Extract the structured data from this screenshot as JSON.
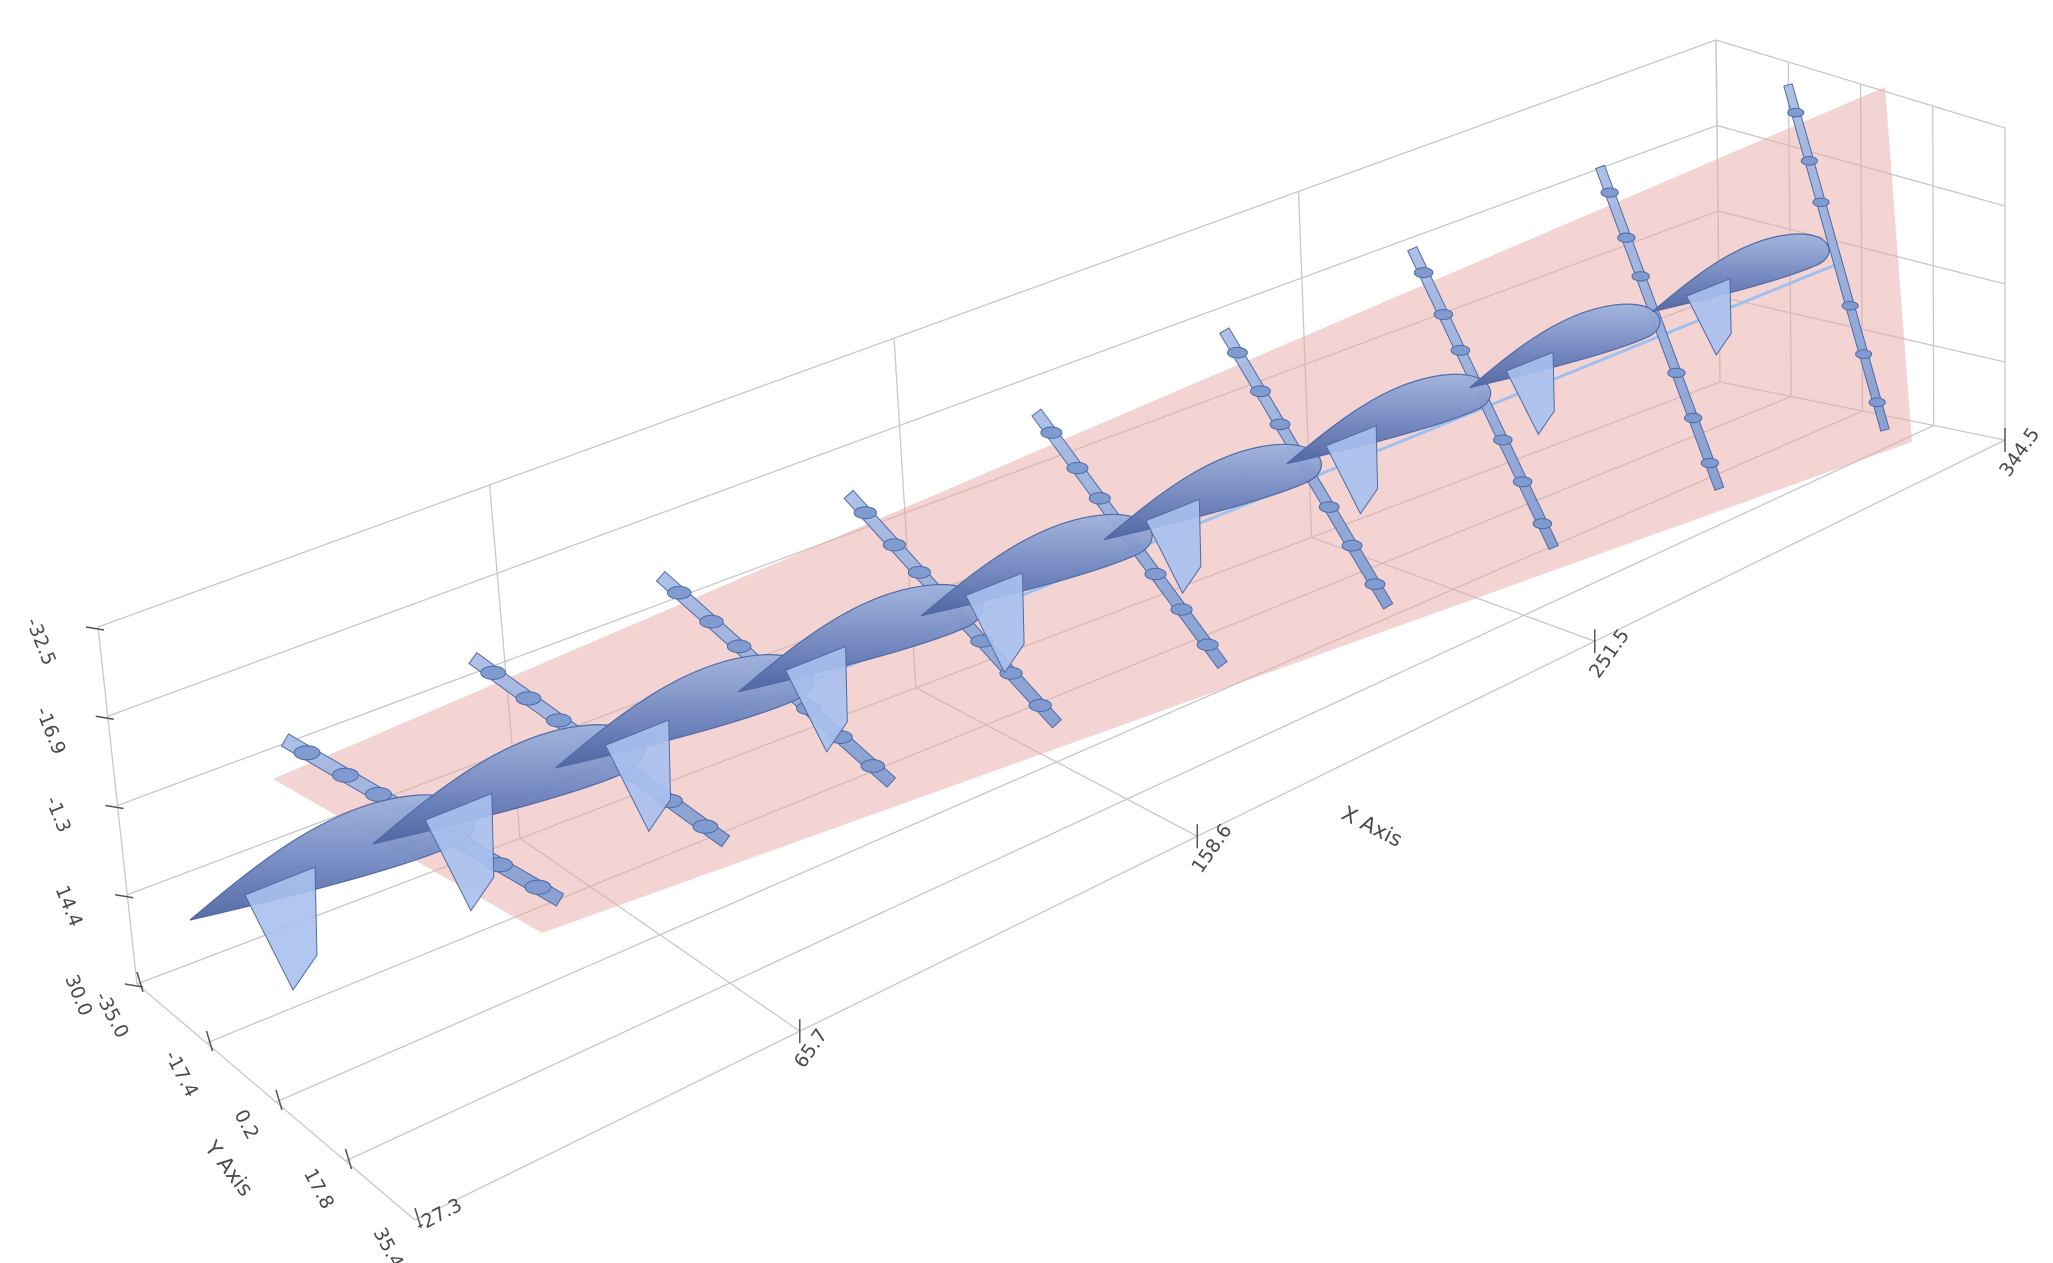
{
  "chart_data": {
    "type": "3d-scene",
    "grid": true,
    "colors": {
      "aircraft": "#7f9bd0",
      "aircraft_dark": "#4f6aa6",
      "surface": "#e8a9a6",
      "path": "#9fc0ee",
      "gridline": "#c8c8c8",
      "axis_text": "#4a4a4a"
    },
    "axes": {
      "x": {
        "label": "X Axis",
        "ticks": [
          "65.7",
          "158.6",
          "251.5",
          "344.5"
        ],
        "range": [
          -27.3,
          344.5
        ]
      },
      "y": {
        "label": "Y Axis",
        "ticks": [
          "-35.0",
          "-17.4",
          "0.2",
          "17.8",
          "35.4"
        ],
        "range": [
          -35.0,
          35.4
        ]
      },
      "z": {
        "label": "",
        "ticks": [
          "-32.5",
          "-16.9",
          "-1.3",
          "14.4",
          "30.0"
        ],
        "range": [
          -32.5,
          30.0
        ]
      },
      "origin_tick": "-27.3"
    },
    "aircraft_count": 9,
    "series": [
      {
        "kind": "aircraft-instances",
        "instances": 9
      },
      {
        "kind": "trajectory-line"
      },
      {
        "kind": "swept-surface"
      }
    ]
  }
}
